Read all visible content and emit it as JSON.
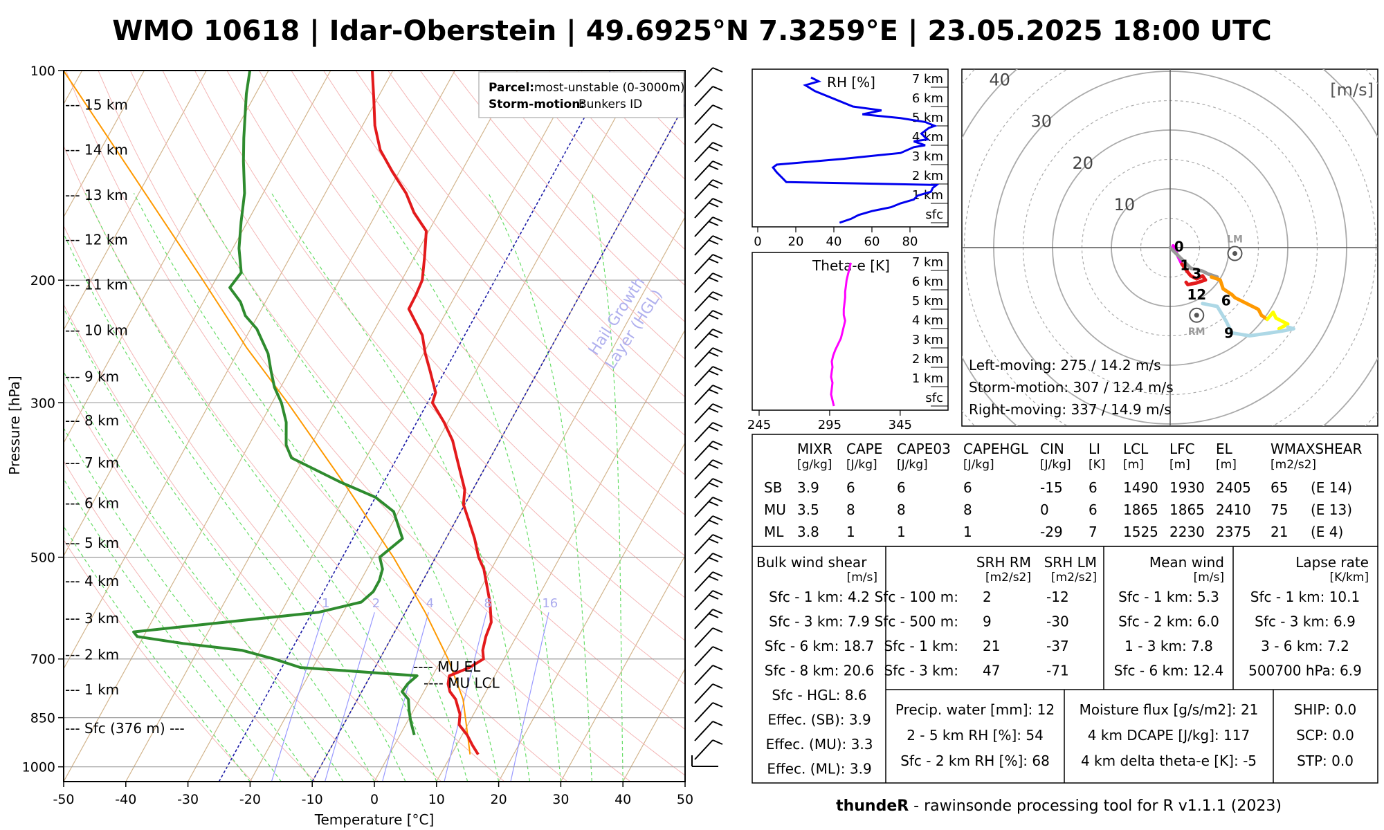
{
  "title": "WMO 10618 | Idar-Oberstein | 49.6925°N 7.3259°E | 23.05.2025 18:00 UTC",
  "colors": {
    "temperature": "#e31a1c",
    "dewpoint": "#2e8b2e",
    "parcel": "#ff9900",
    "isotherm": "#d2b48c",
    "dry_adiabat": "#f4b6b6",
    "moist_adiabat": "#66dd66",
    "mixing_ratio": "#9999ff",
    "hgl": "#1a1aa6",
    "rh_line": "#0000ee",
    "theta_line": "#ff00ff"
  },
  "skewt": {
    "xlabel": "Temperature [°C]",
    "ylabel": "Pressure [hPa]",
    "x_ticks": [
      "-50",
      "-40",
      "-30",
      "-20",
      "-10",
      "0",
      "10",
      "20",
      "30",
      "40",
      "50"
    ],
    "p_ticks": [
      {
        "p": 100,
        "label": "100"
      },
      {
        "p": 200,
        "label": "200"
      },
      {
        "p": 300,
        "label": "300"
      },
      {
        "p": 500,
        "label": "500"
      },
      {
        "p": 700,
        "label": "700"
      },
      {
        "p": 850,
        "label": "850"
      },
      {
        "p": 1000,
        "label": "1000"
      }
    ],
    "height_labels": [
      {
        "p": 112,
        "label": "--- 15 km"
      },
      {
        "p": 130,
        "label": "--- 14 km"
      },
      {
        "p": 151,
        "label": "--- 13 km"
      },
      {
        "p": 175,
        "label": "--- 12 km"
      },
      {
        "p": 203,
        "label": "--- 11 km"
      },
      {
        "p": 236,
        "label": "--- 10 km"
      },
      {
        "p": 275,
        "label": "--- 9 km"
      },
      {
        "p": 318,
        "label": "--- 8 km"
      },
      {
        "p": 366,
        "label": "--- 7 km"
      },
      {
        "p": 418,
        "label": "--- 6 km"
      },
      {
        "p": 477,
        "label": "--- 5 km"
      },
      {
        "p": 541,
        "label": "--- 4 km"
      },
      {
        "p": 612,
        "label": "--- 3 km"
      },
      {
        "p": 690,
        "label": "--- 2 km"
      },
      {
        "p": 775,
        "label": "--- 1 km"
      },
      {
        "p": 880,
        "label": "--- Sfc (376 m) ---"
      }
    ],
    "legend": {
      "parcel_label": "Parcel:",
      "parcel_value": "most-unstable (0-3000m)",
      "storm_label": "Storm-motion:",
      "storm_value": "Bunkers ID"
    },
    "hgl_label_1": "Hail Growth",
    "hgl_label_2": "Layer (HGL)",
    "mixing_ratio_labels": [
      "1",
      "2",
      "4",
      "8",
      "16"
    ],
    "mu_el_label": "---- MU EL",
    "mu_lcl_label": "---- MU LCL"
  },
  "chart_data": {
    "type": "line",
    "temperature": [
      {
        "p": 960,
        "t": 14.3
      },
      {
        "p": 930,
        "t": 12.5
      },
      {
        "p": 900,
        "t": 10.8
      },
      {
        "p": 870,
        "t": 8.6
      },
      {
        "p": 840,
        "t": 7.8
      },
      {
        "p": 820,
        "t": 6.8
      },
      {
        "p": 800,
        "t": 5.8
      },
      {
        "p": 780,
        "t": 4.2
      },
      {
        "p": 760,
        "t": 3.2
      },
      {
        "p": 740,
        "t": 2.7
      },
      {
        "p": 720,
        "t": 5.2
      },
      {
        "p": 700,
        "t": 6.7
      },
      {
        "p": 680,
        "t": 5.8
      },
      {
        "p": 650,
        "t": 5.1
      },
      {
        "p": 620,
        "t": 4.7
      },
      {
        "p": 580,
        "t": 2.7
      },
      {
        "p": 550,
        "t": 0.8
      },
      {
        "p": 520,
        "t": -1.2
      },
      {
        "p": 500,
        "t": -3.1
      },
      {
        "p": 470,
        "t": -5.4
      },
      {
        "p": 440,
        "t": -8.2
      },
      {
        "p": 420,
        "t": -10.2
      },
      {
        "p": 400,
        "t": -11.3
      },
      {
        "p": 380,
        "t": -13.3
      },
      {
        "p": 360,
        "t": -15.4
      },
      {
        "p": 340,
        "t": -17.6
      },
      {
        "p": 320,
        "t": -20.6
      },
      {
        "p": 300,
        "t": -24.2
      },
      {
        "p": 290,
        "t": -24.6
      },
      {
        "p": 270,
        "t": -27.4
      },
      {
        "p": 255,
        "t": -29.7
      },
      {
        "p": 240,
        "t": -31.8
      },
      {
        "p": 230,
        "t": -34.0
      },
      {
        "p": 220,
        "t": -36.3
      },
      {
        "p": 210,
        "t": -36.4
      },
      {
        "p": 200,
        "t": -36.7
      },
      {
        "p": 185,
        "t": -38.4
      },
      {
        "p": 170,
        "t": -40.4
      },
      {
        "p": 160,
        "t": -44.0
      },
      {
        "p": 150,
        "t": -47.0
      },
      {
        "p": 140,
        "t": -51.0
      },
      {
        "p": 130,
        "t": -55.0
      },
      {
        "p": 120,
        "t": -58.0
      },
      {
        "p": 110,
        "t": -60.5
      },
      {
        "p": 100,
        "t": -63.3
      }
    ],
    "dewpoint": [
      {
        "p": 900,
        "t": 2.3
      },
      {
        "p": 860,
        "t": 0.5
      },
      {
        "p": 830,
        "t": -0.7
      },
      {
        "p": 800,
        "t": -1.8
      },
      {
        "p": 780,
        "t": -3.5
      },
      {
        "p": 760,
        "t": -3.3
      },
      {
        "p": 740,
        "t": -2.5
      },
      {
        "p": 720,
        "t": -22.0
      },
      {
        "p": 700,
        "t": -27.0
      },
      {
        "p": 680,
        "t": -33.0
      },
      {
        "p": 665,
        "t": -43.0
      },
      {
        "p": 650,
        "t": -51.0
      },
      {
        "p": 640,
        "t": -52.0
      },
      {
        "p": 600,
        "t": -24.0
      },
      {
        "p": 580,
        "t": -18.0
      },
      {
        "p": 560,
        "t": -17.0
      },
      {
        "p": 540,
        "t": -17.0
      },
      {
        "p": 520,
        "t": -17.5
      },
      {
        "p": 500,
        "t": -19.0
      },
      {
        "p": 470,
        "t": -17.0
      },
      {
        "p": 430,
        "t": -20.8
      },
      {
        "p": 410,
        "t": -25.0
      },
      {
        "p": 390,
        "t": -32.0
      },
      {
        "p": 360,
        "t": -42.0
      },
      {
        "p": 345,
        "t": -44.0
      },
      {
        "p": 320,
        "t": -46.0
      },
      {
        "p": 300,
        "t": -48.5
      },
      {
        "p": 285,
        "t": -51.0
      },
      {
        "p": 270,
        "t": -53.0
      },
      {
        "p": 255,
        "t": -55.0
      },
      {
        "p": 235,
        "t": -59.0
      },
      {
        "p": 225,
        "t": -62.0
      },
      {
        "p": 215,
        "t": -64.0
      },
      {
        "p": 205,
        "t": -67.0
      },
      {
        "p": 195,
        "t": -66.5
      },
      {
        "p": 180,
        "t": -69.0
      },
      {
        "p": 165,
        "t": -71.0
      },
      {
        "p": 150,
        "t": -73.0
      },
      {
        "p": 135,
        "t": -76.0
      },
      {
        "p": 125,
        "t": -78.0
      },
      {
        "p": 115,
        "t": -80.0
      },
      {
        "p": 108,
        "t": -81.5
      },
      {
        "p": 100,
        "t": -83.0
      }
    ],
    "parcel": [
      {
        "p": 960,
        "t": 13.0
      },
      {
        "p": 800,
        "t": 7.0
      },
      {
        "p": 700,
        "t": 1.0
      },
      {
        "p": 600,
        "t": -6.8
      },
      {
        "p": 500,
        "t": -16.8
      },
      {
        "p": 400,
        "t": -30.0
      },
      {
        "p": 300,
        "t": -47.5
      },
      {
        "p": 250,
        "t": -59.0
      },
      {
        "p": 200,
        "t": -72.0
      },
      {
        "p": 150,
        "t": -89.0
      },
      {
        "p": 100,
        "t": -113.0
      }
    ],
    "mu_el_p": 720,
    "mu_lcl_p": 760,
    "hgl_t": [
      -10.0,
      -25.0
    ]
  },
  "rh_panel": {
    "label": "RH [%]",
    "x_ticks": [
      "0",
      "20",
      "40",
      "60",
      "80"
    ],
    "heights": [
      "7 km",
      "6 km",
      "5 km",
      "4 km",
      "3 km",
      "2 km",
      "1 km",
      "sfc"
    ],
    "profile": [
      {
        "h": 0.0,
        "v": 43
      },
      {
        "h": 0.2,
        "v": 49
      },
      {
        "h": 0.4,
        "v": 53
      },
      {
        "h": 0.6,
        "v": 60
      },
      {
        "h": 0.8,
        "v": 70
      },
      {
        "h": 1.0,
        "v": 75
      },
      {
        "h": 1.2,
        "v": 82
      },
      {
        "h": 1.4,
        "v": 84
      },
      {
        "h": 1.6,
        "v": 91
      },
      {
        "h": 1.8,
        "v": 92
      },
      {
        "h": 1.95,
        "v": 94
      },
      {
        "h": 2.1,
        "v": 15
      },
      {
        "h": 2.3,
        "v": 13
      },
      {
        "h": 2.6,
        "v": 10
      },
      {
        "h": 2.85,
        "v": 8
      },
      {
        "h": 3.0,
        "v": 10
      },
      {
        "h": 3.3,
        "v": 45
      },
      {
        "h": 3.6,
        "v": 75
      },
      {
        "h": 3.9,
        "v": 82
      },
      {
        "h": 4.0,
        "v": 88
      },
      {
        "h": 4.2,
        "v": 82
      },
      {
        "h": 4.3,
        "v": 89
      },
      {
        "h": 4.6,
        "v": 86
      },
      {
        "h": 4.9,
        "v": 90
      },
      {
        "h": 5.0,
        "v": 93
      },
      {
        "h": 5.2,
        "v": 88
      },
      {
        "h": 5.4,
        "v": 75
      },
      {
        "h": 5.6,
        "v": 55
      },
      {
        "h": 5.8,
        "v": 65
      },
      {
        "h": 6.0,
        "v": 50
      },
      {
        "h": 6.4,
        "v": 40
      },
      {
        "h": 6.8,
        "v": 30
      },
      {
        "h": 7.1,
        "v": 25
      },
      {
        "h": 7.3,
        "v": 32
      },
      {
        "h": 7.5,
        "v": 28
      }
    ]
  },
  "theta_panel": {
    "label": "Theta-e [K]",
    "x_ticks": [
      "245",
      "295",
      "345"
    ],
    "heights": [
      "7 km",
      "6 km",
      "5 km",
      "4 km",
      "3 km",
      "2 km",
      "1 km",
      "sfc"
    ],
    "profile": [
      {
        "h": 0.0,
        "v": 298
      },
      {
        "h": 0.3,
        "v": 297
      },
      {
        "h": 0.6,
        "v": 296
      },
      {
        "h": 0.9,
        "v": 296.5
      },
      {
        "h": 1.2,
        "v": 297
      },
      {
        "h": 1.5,
        "v": 296
      },
      {
        "h": 1.8,
        "v": 296.5
      },
      {
        "h": 2.0,
        "v": 297
      },
      {
        "h": 2.3,
        "v": 296.5
      },
      {
        "h": 2.6,
        "v": 297.5
      },
      {
        "h": 2.9,
        "v": 299
      },
      {
        "h": 3.2,
        "v": 301
      },
      {
        "h": 3.5,
        "v": 303
      },
      {
        "h": 3.8,
        "v": 304
      },
      {
        "h": 4.1,
        "v": 305
      },
      {
        "h": 4.4,
        "v": 306
      },
      {
        "h": 4.7,
        "v": 305
      },
      {
        "h": 5.0,
        "v": 305
      },
      {
        "h": 5.3,
        "v": 305.5
      },
      {
        "h": 5.6,
        "v": 306
      },
      {
        "h": 5.9,
        "v": 306
      },
      {
        "h": 6.2,
        "v": 306.5
      },
      {
        "h": 6.5,
        "v": 307
      },
      {
        "h": 6.8,
        "v": 308
      },
      {
        "h": 7.1,
        "v": 309
      },
      {
        "h": 7.4,
        "v": 310
      }
    ]
  },
  "hodograph": {
    "unit": "[m/s]",
    "ring_labels": [
      "10",
      "20",
      "30",
      "40"
    ],
    "segments": [
      {
        "color": "#ff00ff",
        "points": [
          [
            0.5,
            0.3
          ],
          [
            1.0,
            -0.8
          ],
          [
            1.5,
            -1.8
          ],
          [
            2.0,
            -2.8
          ]
        ]
      },
      {
        "color": "#e31a1c",
        "points": [
          [
            2.0,
            -2.8
          ],
          [
            2.5,
            -3.5
          ],
          [
            3.0,
            -4.2
          ],
          [
            3.5,
            -4.8
          ],
          [
            4.5,
            -5.3
          ],
          [
            5.5,
            -4.8
          ],
          [
            6.0,
            -5.5
          ],
          [
            4.5,
            -6.0
          ],
          [
            3.0,
            -6.3
          ],
          [
            2.7,
            -5.9
          ]
        ]
      },
      {
        "color": "#999999",
        "points": [
          [
            0.0,
            0.0
          ],
          [
            2.0,
            -2.0
          ],
          [
            3.5,
            -3.5
          ],
          [
            5.5,
            -4.0
          ],
          [
            6.5,
            -4.5
          ],
          [
            8.0,
            -5.0
          ]
        ]
      },
      {
        "color": "#ff9900",
        "points": [
          [
            7.0,
            -5.0
          ],
          [
            8.5,
            -5.5
          ],
          [
            9.0,
            -7.0
          ],
          [
            10.5,
            -8.0
          ],
          [
            11.0,
            -8.5
          ],
          [
            13.0,
            -9.5
          ],
          [
            15.0,
            -10.5
          ],
          [
            15.5,
            -11.5
          ],
          [
            16.5,
            -12.2
          ]
        ]
      },
      {
        "color": "#ffff00",
        "points": [
          [
            16.5,
            -12.2
          ],
          [
            17.5,
            -11.0
          ],
          [
            18.0,
            -12.0
          ],
          [
            19.0,
            -12.5
          ],
          [
            20.0,
            -13.0
          ],
          [
            18.5,
            -13.8
          ]
        ]
      },
      {
        "color": "#add8e6",
        "points": [
          [
            20.0,
            -13.5
          ],
          [
            21.0,
            -13.8
          ],
          [
            19.0,
            -14.2
          ],
          [
            17.0,
            -14.5
          ],
          [
            13.5,
            -15.0
          ],
          [
            10.5,
            -14.5
          ],
          [
            9.5,
            -12.5
          ],
          [
            8.0,
            -10.0
          ],
          [
            5.5,
            -9.5
          ]
        ]
      }
    ],
    "hour_labels": [
      {
        "label": "0",
        "u": 1.5,
        "v": 0.2
      },
      {
        "label": "1",
        "u": 2.5,
        "v": -3.0
      },
      {
        "label": "3",
        "u": 4.5,
        "v": -4.4
      },
      {
        "label": "12",
        "u": 4.5,
        "v": -8.0
      },
      {
        "label": "6",
        "u": 9.5,
        "v": -9.0
      },
      {
        "label": "9",
        "u": 10.0,
        "v": -14.5
      }
    ],
    "lm": {
      "label": "LM",
      "u": 11.0,
      "v": -1.0
    },
    "rm": {
      "label": "RM",
      "u": 4.5,
      "v": -11.5
    },
    "lines": [
      "Left-moving: 275 / 14.2 m/s",
      "Storm-motion: 307 / 12.4 m/s",
      "Right-moving: 337 / 14.9 m/s"
    ]
  },
  "indices": {
    "headers": [
      {
        "name": "MIXR",
        "unit": "[g/kg]"
      },
      {
        "name": "CAPE",
        "unit": "[J/kg]"
      },
      {
        "name": "CAPE03",
        "unit": "[J/kg]"
      },
      {
        "name": "CAPEHGL",
        "unit": "[J/kg]"
      },
      {
        "name": "CIN",
        "unit": "[J/kg]"
      },
      {
        "name": "LI",
        "unit": "[K]"
      },
      {
        "name": "LCL",
        "unit": "[m]"
      },
      {
        "name": "LFC",
        "unit": "[m]"
      },
      {
        "name": "EL",
        "unit": "[m]"
      },
      {
        "name": "WMAXSHEAR",
        "unit": "[m2/s2]"
      }
    ],
    "rows": [
      {
        "label": "SB",
        "values": [
          "3.9",
          "6",
          "6",
          "6",
          "-15",
          "6",
          "1490",
          "1930",
          "2405",
          "65",
          "(E 14)"
        ]
      },
      {
        "label": "MU",
        "values": [
          "3.5",
          "8",
          "8",
          "8",
          "0",
          "6",
          "1865",
          "1865",
          "2410",
          "75",
          "(E 13)"
        ]
      },
      {
        "label": "ML",
        "values": [
          "3.8",
          "1",
          "1",
          "1",
          "-29",
          "7",
          "1525",
          "2230",
          "2375",
          "21",
          "(E 4)"
        ]
      }
    ]
  },
  "bulk_shear": {
    "title": "Bulk wind shear",
    "unit": "[m/s]",
    "rows": [
      "Sfc - 1 km: 4.2",
      "Sfc - 3 km: 7.9",
      "Sfc - 6 km: 18.7",
      "Sfc - 8 km: 20.6",
      "Sfc - HGL: 8.6",
      "Effec. (SB): 3.9",
      "Effec. (MU): 3.3",
      "Effec. (ML): 3.9"
    ]
  },
  "srh": {
    "title_rm": "SRH RM",
    "title_lm": "SRH LM",
    "unit_rm": "[m2/s2]",
    "unit_lm": "[m2/s2]",
    "rows": [
      {
        "label": "Sfc - 100 m:",
        "rm": "2",
        "lm": "-12"
      },
      {
        "label": "Sfc - 500 m:",
        "rm": "9",
        "lm": "-30"
      },
      {
        "label": "Sfc - 1 km:",
        "rm": "21",
        "lm": "-37"
      },
      {
        "label": "Sfc - 3 km:",
        "rm": "47",
        "lm": "-71"
      }
    ]
  },
  "mean_wind": {
    "title": "Mean wind",
    "unit": "[m/s]",
    "rows": [
      "Sfc - 1 km: 5.3",
      "Sfc - 2 km: 6.0",
      "1 - 3 km: 7.8",
      "Sfc - 6 km: 12.4"
    ]
  },
  "lapse": {
    "title": "Lapse rate",
    "unit": "[K/km]",
    "rows": [
      "Sfc - 1 km: 10.1",
      "Sfc - 3 km: 6.9",
      "3 - 6 km: 7.2",
      "500700 hPa: 6.9"
    ]
  },
  "moisture": {
    "rows_left": [
      "Precip. water [mm]: 12",
      "2 - 5 km RH [%]: 54",
      "Sfc - 2 km RH [%]: 68"
    ],
    "rows_mid": [
      "Moisture flux [g/s/m2]: 21",
      "4 km DCAPE [J/kg]: 117",
      "4 km delta theta-e [K]: -5"
    ],
    "rows_right": [
      "SHIP: 0.0",
      "SCP: 0.0",
      "STP: 0.0"
    ]
  },
  "footer": {
    "bold": "thundeR",
    "rest": " - rawinsonde processing tool for R v1.1.1 (2023)"
  }
}
